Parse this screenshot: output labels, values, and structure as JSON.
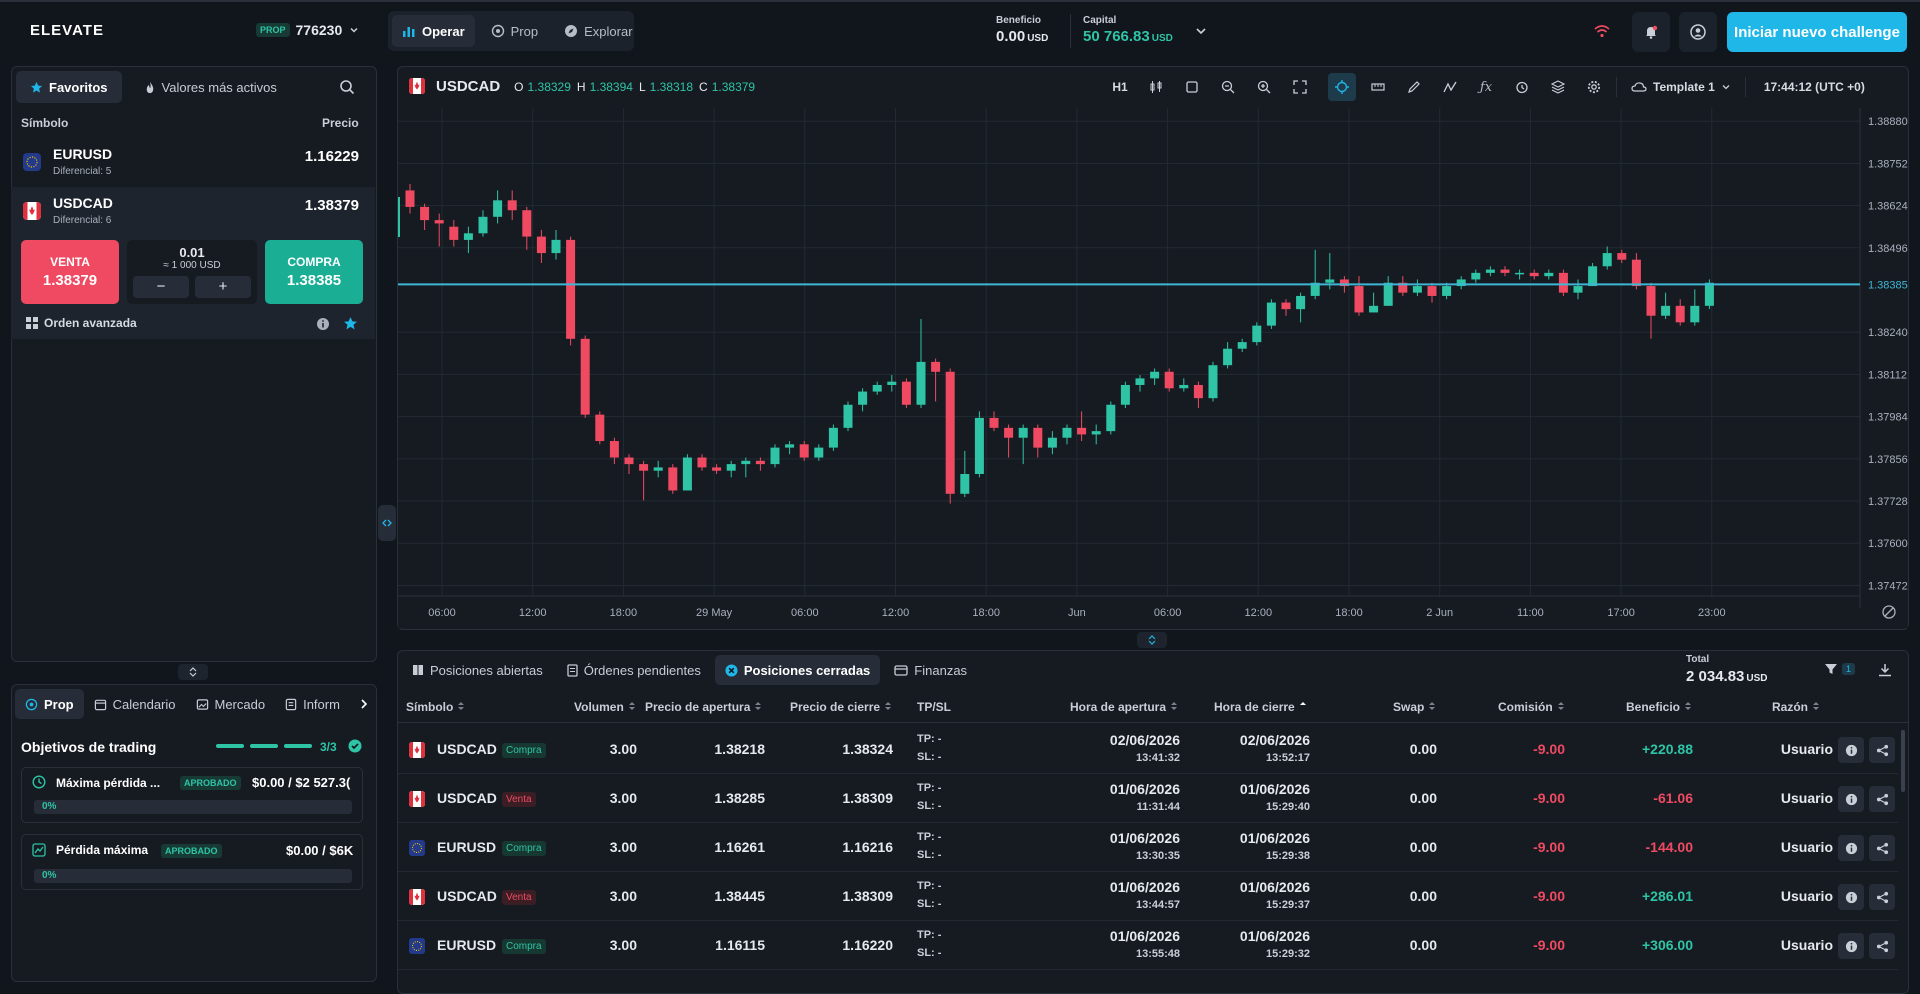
{
  "brand": {
    "logo": "ELEVATE"
  },
  "account": {
    "tag": "PROP",
    "id": "776230"
  },
  "nav": {
    "items": [
      {
        "label": "Operar"
      },
      {
        "label": "Prop"
      },
      {
        "label": "Explorar"
      }
    ]
  },
  "summary": {
    "profit_label": "Beneficio",
    "profit_value": "0.00",
    "profit_ccy": "USD",
    "capital_label": "Capital",
    "capital_value": "50 766.83",
    "capital_ccy": "USD"
  },
  "cta": {
    "label": "Iniciar nuevo challenge"
  },
  "watchlist": {
    "tabs": [
      {
        "label": "Favoritos"
      },
      {
        "label": "Valores más activos"
      }
    ],
    "col_symbol": "Símbolo",
    "col_price": "Precio",
    "rows": [
      {
        "symbol": "EURUSD",
        "spread": "Diferencial: 5",
        "price": "1.16229"
      },
      {
        "symbol": "USDCAD",
        "spread": "Diferencial: 6",
        "price": "1.38379"
      }
    ],
    "sell_label": "VENTA",
    "sell_price": "1.38379",
    "buy_label": "COMPRA",
    "buy_price": "1.38385",
    "lot": "0.01",
    "lot_usd": "≈ 1 000 USD",
    "minus": "−",
    "plus": "+",
    "advanced": "Orden avanzada"
  },
  "bottom_left": {
    "tabs": [
      {
        "label": "Prop"
      },
      {
        "label": "Calendario"
      },
      {
        "label": "Mercado"
      },
      {
        "label": "Inform"
      }
    ],
    "objectives_title": "Objetivos de trading",
    "objectives_count": "3/3",
    "objectives": [
      {
        "name": "Máxima pérdida ...",
        "status": "APROBADO",
        "value": "$0.00 / $2 527.3(",
        "pct": "0%",
        "progress": 0
      },
      {
        "name": "Pérdida máxima",
        "status": "APROBADO",
        "value": "$0.00 / $6K",
        "pct": "0%",
        "progress": 0
      }
    ]
  },
  "chart_header": {
    "symbol": "USDCAD",
    "o_label": "O",
    "o": "1.38329",
    "h_label": "H",
    "h": "1.38394",
    "l_label": "L",
    "l": "1.38318",
    "c_label": "C",
    "c": "1.38379",
    "timeframe": "H1",
    "template": "Template 1",
    "time": "17:44:12 (UTC +0)"
  },
  "chart_data": {
    "type": "candlestick",
    "y_ticks": [
      "1.38880",
      "1.38752",
      "1.38624",
      "1.38496",
      "1.38385",
      "1.38240",
      "1.38112",
      "1.37984",
      "1.37856",
      "1.37728",
      "1.37600",
      "1.37472"
    ],
    "y_tick_values": [
      1.3888,
      1.38752,
      1.38624,
      1.38496,
      1.38385,
      1.3824,
      1.38112,
      1.37984,
      1.37856,
      1.37728,
      1.376,
      1.37472
    ],
    "current_price": 1.38385,
    "ylim": [
      1.3744,
      1.3892
    ],
    "x_ticks": [
      "06:00",
      "12:00",
      "18:00",
      "29 May",
      "06:00",
      "12:00",
      "18:00",
      "Jun",
      "06:00",
      "12:00",
      "18:00",
      "2 Jun",
      "11:00",
      "17:00",
      "23:00"
    ],
    "candles": [
      [
        1.3867,
        1.3862,
        1.3869,
        1.386
      ],
      [
        1.3862,
        1.3858,
        1.3863,
        1.3855
      ],
      [
        1.3858,
        1.3857,
        1.386,
        1.385
      ],
      [
        1.3856,
        1.3852,
        1.3858,
        1.385
      ],
      [
        1.3852,
        1.3854,
        1.3856,
        1.3848
      ],
      [
        1.3854,
        1.3859,
        1.3861,
        1.3853
      ],
      [
        1.3859,
        1.3864,
        1.3867,
        1.3857
      ],
      [
        1.3864,
        1.3861,
        1.3867,
        1.3858
      ],
      [
        1.3861,
        1.3853,
        1.3862,
        1.3849
      ],
      [
        1.3853,
        1.3848,
        1.3855,
        1.3845
      ],
      [
        1.3848,
        1.3852,
        1.3855,
        1.3846
      ],
      [
        1.3852,
        1.3822,
        1.3853,
        1.382
      ],
      [
        1.3822,
        1.3799,
        1.3823,
        1.3798
      ],
      [
        1.3799,
        1.3791,
        1.38,
        1.379
      ],
      [
        1.3791,
        1.3786,
        1.3792,
        1.3784
      ],
      [
        1.3786,
        1.3784,
        1.3787,
        1.3781
      ],
      [
        1.3784,
        1.3782,
        1.3785,
        1.3773
      ],
      [
        1.3782,
        1.3783,
        1.3785,
        1.378
      ],
      [
        1.3783,
        1.3776,
        1.3784,
        1.3775
      ],
      [
        1.3776,
        1.3786,
        1.3787,
        1.3776
      ],
      [
        1.3786,
        1.3783,
        1.3787,
        1.3782
      ],
      [
        1.3783,
        1.3782,
        1.3784,
        1.3781
      ],
      [
        1.3782,
        1.3784,
        1.3785,
        1.378
      ],
      [
        1.3784,
        1.3785,
        1.3786,
        1.378
      ],
      [
        1.3785,
        1.3784,
        1.3786,
        1.3782
      ],
      [
        1.3784,
        1.3789,
        1.379,
        1.3783
      ],
      [
        1.3789,
        1.379,
        1.3791,
        1.3787
      ],
      [
        1.379,
        1.3786,
        1.3791,
        1.3785
      ],
      [
        1.3786,
        1.3789,
        1.379,
        1.3785
      ],
      [
        1.3789,
        1.3795,
        1.3796,
        1.3788
      ],
      [
        1.3795,
        1.3802,
        1.3803,
        1.3794
      ],
      [
        1.3802,
        1.3806,
        1.3807,
        1.38
      ],
      [
        1.3806,
        1.3808,
        1.3809,
        1.3805
      ],
      [
        1.3808,
        1.3809,
        1.3811,
        1.3806
      ],
      [
        1.3809,
        1.3802,
        1.381,
        1.3801
      ],
      [
        1.3802,
        1.3815,
        1.3828,
        1.3801
      ],
      [
        1.3815,
        1.3812,
        1.3816,
        1.3803
      ],
      [
        1.3812,
        1.3775,
        1.3813,
        1.3772
      ],
      [
        1.3775,
        1.3781,
        1.3788,
        1.3774
      ],
      [
        1.3781,
        1.3798,
        1.38,
        1.378
      ],
      [
        1.3798,
        1.3795,
        1.38,
        1.3794
      ],
      [
        1.3795,
        1.3792,
        1.3796,
        1.3786
      ],
      [
        1.3792,
        1.3795,
        1.3796,
        1.3784
      ],
      [
        1.3795,
        1.3789,
        1.3796,
        1.3786
      ],
      [
        1.3789,
        1.3792,
        1.3794,
        1.3787
      ],
      [
        1.3792,
        1.3795,
        1.3796,
        1.379
      ],
      [
        1.3795,
        1.3793,
        1.38,
        1.3791
      ],
      [
        1.3793,
        1.3794,
        1.3796,
        1.379
      ],
      [
        1.3794,
        1.3802,
        1.3803,
        1.3793
      ],
      [
        1.3802,
        1.3808,
        1.3809,
        1.3801
      ],
      [
        1.3808,
        1.381,
        1.3811,
        1.3806
      ],
      [
        1.381,
        1.3812,
        1.3813,
        1.3808
      ],
      [
        1.3812,
        1.3807,
        1.3813,
        1.3806
      ],
      [
        1.3807,
        1.3808,
        1.381,
        1.3806
      ],
      [
        1.3808,
        1.3804,
        1.3809,
        1.3801
      ],
      [
        1.3804,
        1.3814,
        1.3815,
        1.3803
      ],
      [
        1.3814,
        1.3819,
        1.3821,
        1.3813
      ],
      [
        1.3819,
        1.3821,
        1.3822,
        1.3818
      ],
      [
        1.3821,
        1.3826,
        1.3827,
        1.382
      ],
      [
        1.3826,
        1.3833,
        1.3834,
        1.3825
      ],
      [
        1.3833,
        1.3831,
        1.3834,
        1.3829
      ],
      [
        1.3831,
        1.3835,
        1.3836,
        1.3827
      ],
      [
        1.3835,
        1.3839,
        1.3849,
        1.3834
      ],
      [
        1.3839,
        1.384,
        1.3848,
        1.3837
      ],
      [
        1.384,
        1.3838,
        1.3841,
        1.3836
      ],
      [
        1.3838,
        1.383,
        1.3841,
        1.3829
      ],
      [
        1.383,
        1.3832,
        1.3836,
        1.383
      ],
      [
        1.3832,
        1.3839,
        1.3841,
        1.3832
      ],
      [
        1.3839,
        1.3836,
        1.3841,
        1.3835
      ],
      [
        1.3836,
        1.3838,
        1.384,
        1.3835
      ],
      [
        1.3838,
        1.3835,
        1.3839,
        1.3833
      ],
      [
        1.3835,
        1.3838,
        1.3839,
        1.3834
      ],
      [
        1.3838,
        1.384,
        1.3841,
        1.3837
      ],
      [
        1.384,
        1.3842,
        1.3843,
        1.3839
      ],
      [
        1.3842,
        1.3843,
        1.3844,
        1.3841
      ],
      [
        1.3843,
        1.3842,
        1.3844,
        1.3841
      ],
      [
        1.3842,
        1.3842,
        1.3843,
        1.384
      ],
      [
        1.3842,
        1.3841,
        1.3843,
        1.384
      ],
      [
        1.3841,
        1.3842,
        1.3843,
        1.384
      ],
      [
        1.3842,
        1.3836,
        1.3843,
        1.3835
      ],
      [
        1.3836,
        1.3838,
        1.384,
        1.3834
      ],
      [
        1.3838,
        1.3844,
        1.3845,
        1.3838
      ],
      [
        1.3844,
        1.3848,
        1.385,
        1.3843
      ],
      [
        1.3848,
        1.3846,
        1.3849,
        1.3845
      ],
      [
        1.3846,
        1.3838,
        1.3848,
        1.3837
      ],
      [
        1.3838,
        1.3829,
        1.3839,
        1.3822
      ],
      [
        1.3829,
        1.3832,
        1.3836,
        1.3828
      ],
      [
        1.3832,
        1.3827,
        1.3834,
        1.3826
      ],
      [
        1.3827,
        1.3832,
        1.3837,
        1.3826
      ],
      [
        1.3832,
        1.3839,
        1.384,
        1.3831
      ]
    ]
  },
  "bottom_tabs": {
    "tabs": [
      {
        "label": "Posiciones abiertas"
      },
      {
        "label": "Órdenes pendientes"
      },
      {
        "label": "Posiciones cerradas"
      },
      {
        "label": "Finanzas"
      }
    ],
    "total_label": "Total",
    "total_value": "2 034.83",
    "total_ccy": "USD",
    "filter_count": "1"
  },
  "table": {
    "headers": [
      "Símbolo",
      "Volumen",
      "Precio de apertura",
      "Precio de cierre",
      "TP/SL",
      "Hora de apertura",
      "Hora de cierre",
      "Swap",
      "Comisión",
      "Beneficio",
      "Razón"
    ],
    "rows": [
      {
        "symbol": "USDCAD",
        "side": "Compra",
        "vol": "3.00",
        "open": "1.38218",
        "close": "1.38324",
        "tp": "TP: -",
        "sl": "SL: -",
        "open_date": "02/06/2026",
        "open_time": "13:41:32",
        "close_date": "02/06/2026",
        "close_time": "13:52:17",
        "swap": "0.00",
        "commission": "-9.00",
        "profit": "+220.88",
        "reason": "Usuario"
      },
      {
        "symbol": "USDCAD",
        "side": "Venta",
        "vol": "3.00",
        "open": "1.38285",
        "close": "1.38309",
        "tp": "TP: -",
        "sl": "SL: -",
        "open_date": "01/06/2026",
        "open_time": "11:31:44",
        "close_date": "01/06/2026",
        "close_time": "15:29:40",
        "swap": "0.00",
        "commission": "-9.00",
        "profit": "-61.06",
        "reason": "Usuario"
      },
      {
        "symbol": "EURUSD",
        "side": "Compra",
        "vol": "3.00",
        "open": "1.16261",
        "close": "1.16216",
        "tp": "TP: -",
        "sl": "SL: -",
        "open_date": "01/06/2026",
        "open_time": "13:30:35",
        "close_date": "01/06/2026",
        "close_time": "15:29:38",
        "swap": "0.00",
        "commission": "-9.00",
        "profit": "-144.00",
        "reason": "Usuario"
      },
      {
        "symbol": "USDCAD",
        "side": "Venta",
        "vol": "3.00",
        "open": "1.38445",
        "close": "1.38309",
        "tp": "TP: -",
        "sl": "SL: -",
        "open_date": "01/06/2026",
        "open_time": "13:44:57",
        "close_date": "01/06/2026",
        "close_time": "15:29:37",
        "swap": "0.00",
        "commission": "-9.00",
        "profit": "+286.01",
        "reason": "Usuario"
      },
      {
        "symbol": "EURUSD",
        "side": "Compra",
        "vol": "3.00",
        "open": "1.16115",
        "close": "1.16220",
        "tp": "TP: -",
        "sl": "SL: -",
        "open_date": "01/06/2026",
        "open_time": "13:55:48",
        "close_date": "01/06/2026",
        "close_time": "15:29:32",
        "swap": "0.00",
        "commission": "-9.00",
        "profit": "+306.00",
        "reason": "Usuario"
      }
    ]
  },
  "colors": {
    "up": "#2ec4a5",
    "down": "#f04a62",
    "accent": "#1fb6e8",
    "price_line": "#3fb6d6"
  }
}
